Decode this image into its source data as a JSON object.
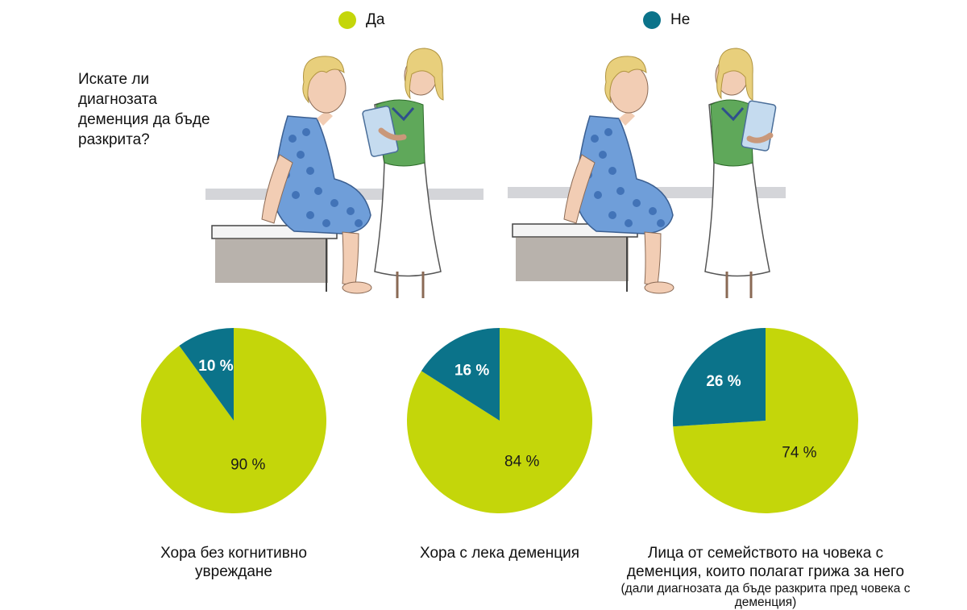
{
  "legend": [
    {
      "label": "Да",
      "color": "#c4d60a"
    },
    {
      "label": "Не",
      "color": "#0b738a"
    }
  ],
  "question": "Искате ли диагнозата деменция да бъде разкрита?",
  "colors": {
    "yes": "#c4d60a",
    "no": "#0b738a"
  },
  "chart_data": [
    {
      "type": "pie",
      "categories": [
        "Да",
        "Не"
      ],
      "values": [
        90,
        10
      ],
      "labels": [
        "90 %",
        "10 %"
      ],
      "caption": "Хора без когнитивно увреждане"
    },
    {
      "type": "pie",
      "categories": [
        "Да",
        "Не"
      ],
      "values": [
        84,
        16
      ],
      "labels": [
        "84 %",
        "16 %"
      ],
      "caption": "Хора с лека деменция"
    },
    {
      "type": "pie",
      "categories": [
        "Да",
        "Не"
      ],
      "values": [
        74,
        26
      ],
      "labels": [
        "74 %",
        "26 %"
      ],
      "caption": "Лица от семейството на човека с деменция, които полагат грижа за него",
      "subcaption": "(дали диагнозата да бъде разкрита пред човека с деменция)"
    }
  ]
}
